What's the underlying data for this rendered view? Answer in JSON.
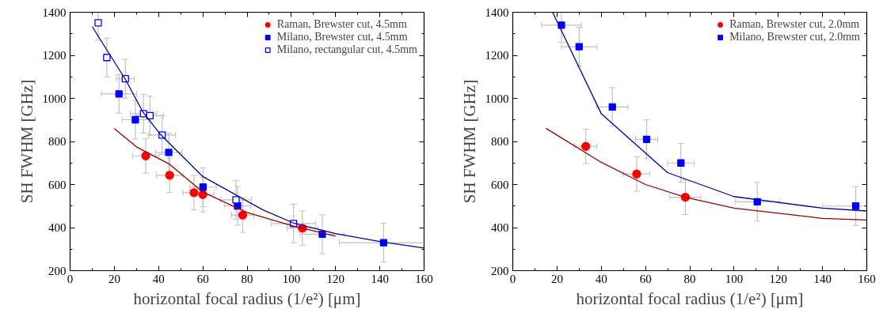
{
  "chart_data": [
    {
      "type": "scatter",
      "xlabel": "horizontal focal radius (1/e²) [μm]",
      "ylabel": "SH FWHM [GHz]",
      "xlim": [
        0,
        160
      ],
      "ylim": [
        200,
        1400
      ],
      "xticks": [
        0,
        20,
        40,
        60,
        80,
        100,
        120,
        140,
        160
      ],
      "yticks": [
        200,
        400,
        600,
        800,
        1000,
        1200,
        1400
      ],
      "grid": false,
      "legend": "top right",
      "series": [
        {
          "name": "Raman, Brewster cut, 4.5mm",
          "color": "#ff0000",
          "marker": "circle",
          "x": [
            34.2,
            45,
            56,
            60,
            78,
            105
          ],
          "values": [
            733,
            643,
            562,
            553,
            458,
            397
          ],
          "errors": [
            80,
            80,
            80,
            80,
            80,
            80
          ],
          "xerrors": [
            6,
            6,
            5,
            5,
            5,
            7
          ]
        },
        {
          "name": "Milano, Brewster cut, 4.5mm",
          "color": "#0000ff",
          "marker": "square",
          "x": [
            22.1,
            29.5,
            44.6,
            60.1,
            75.7,
            114,
            141.7
          ],
          "values": [
            1021,
            901,
            749,
            588,
            501,
            369,
            330
          ],
          "errors": [
            90,
            90,
            90,
            90,
            90,
            90,
            90
          ],
          "xerrors": [
            8,
            6,
            6,
            6,
            6,
            10,
            20
          ]
        },
        {
          "name": "Milano, rectangular cut, 4.5mm",
          "color": "#0000ff",
          "marker": "square",
          "x": [
            12.7,
            16.6,
            25,
            33.2,
            36.1,
            41.6,
            75,
            101
          ],
          "values": [
            1351,
            1190,
            1091,
            929,
            920,
            830,
            529,
            419
          ],
          "errors": [
            [
              1270,
              1400
            ],
            90,
            90,
            90,
            90,
            90,
            90,
            90
          ],
          "xerrors": [
            null,
            null,
            4,
            6,
            6,
            6,
            7,
            10
          ]
        },
        {
          "type": "line",
          "color": "#000099",
          "x": [
            10,
            25,
            33,
            41,
            60,
            87,
            101,
            120,
            142,
            160
          ],
          "values": [
            1333,
            1088,
            935,
            831,
            637,
            483,
            421,
            372,
            332,
            305
          ]
        },
        {
          "type": "line",
          "color": "#990000",
          "x": [
            20,
            30,
            45,
            60,
            80,
            100,
            120
          ],
          "values": [
            860,
            775,
            694,
            565,
            470,
            410,
            360
          ]
        }
      ]
    },
    {
      "type": "scatter",
      "xlabel": "horizontal focal radius (1/e²) [μm]",
      "ylabel": "SH FWHM [GHz]",
      "xlim": [
        0,
        160
      ],
      "ylim": [
        200,
        1400
      ],
      "xticks": [
        0,
        20,
        40,
        60,
        80,
        100,
        120,
        140,
        160
      ],
      "yticks": [
        200,
        400,
        600,
        800,
        1000,
        1200,
        1400
      ],
      "grid": false,
      "legend": "top right",
      "series": [
        {
          "name": "Raman, Brewster cut, 2.0mm",
          "color": "#ff0000",
          "marker": "circle",
          "x": [
            33,
            56,
            78
          ],
          "values": [
            777,
            649,
            541
          ],
          "errors": [
            80,
            80,
            80
          ],
          "xerrors": [
            5,
            6,
            7
          ]
        },
        {
          "name": "Milano, Brewster cut, 2.0mm",
          "color": "#0000ff",
          "marker": "square",
          "x": [
            22,
            30,
            45,
            60.5,
            76,
            110.5,
            155
          ],
          "values": [
            1340,
            1240,
            960,
            810,
            700,
            520,
            500
          ],
          "errors": [
            [
              1260,
              1400
            ],
            90,
            90,
            90,
            90,
            90,
            90
          ],
          "xerrors": [
            9,
            8,
            7,
            5,
            6,
            10,
            15
          ]
        },
        {
          "type": "line",
          "color": "#000099",
          "x": [
            18,
            40,
            70,
            100,
            140,
            160
          ],
          "values": [
            1400,
            929,
            655,
            544,
            490,
            477
          ]
        },
        {
          "type": "line",
          "color": "#990000",
          "x": [
            15,
            40,
            60,
            78,
            100,
            140,
            160
          ],
          "values": [
            861,
            703,
            600,
            541,
            490,
            443,
            435
          ]
        }
      ]
    }
  ]
}
